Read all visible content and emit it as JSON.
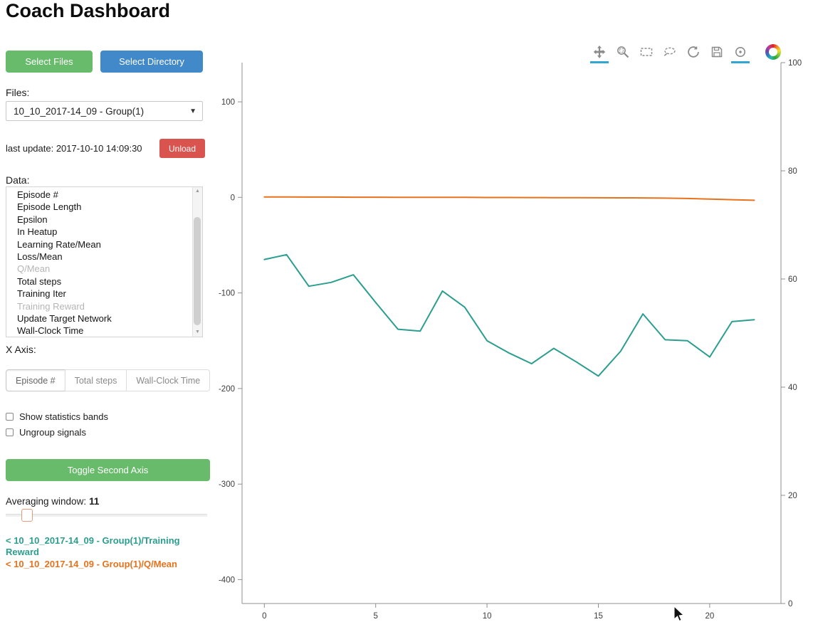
{
  "page": {
    "title": "Coach Dashboard"
  },
  "colors": {
    "green_button": "#67bb6a",
    "blue_button": "#4289ca",
    "red_button": "#d9534f",
    "active_tool_underline": "#30a6d4",
    "training_reward_line": "#2b9e8e",
    "q_mean_line": "#e8721c"
  },
  "sidebar": {
    "select_files": "Select Files",
    "select_directory": "Select Directory",
    "files_label": "Files:",
    "files_selected": "10_10_2017-14_09 - Group(1)",
    "dropdown_caret": "▼",
    "last_update": "last update: 2017-10-10 14:09:30",
    "unload": "Unload",
    "data_label": "Data:",
    "data_items": [
      {
        "label": "Episode #",
        "dimmed": false
      },
      {
        "label": "Episode Length",
        "dimmed": false
      },
      {
        "label": "Epsilon",
        "dimmed": false
      },
      {
        "label": "In Heatup",
        "dimmed": false
      },
      {
        "label": "Learning Rate/Mean",
        "dimmed": false
      },
      {
        "label": "Loss/Mean",
        "dimmed": false
      },
      {
        "label": "Q/Mean",
        "dimmed": true
      },
      {
        "label": "Total steps",
        "dimmed": false
      },
      {
        "label": "Training Iter",
        "dimmed": false
      },
      {
        "label": "Training Reward",
        "dimmed": true
      },
      {
        "label": "Update Target Network",
        "dimmed": false
      },
      {
        "label": "Wall-Clock Time",
        "dimmed": false
      }
    ],
    "scrollbar_up": "▲",
    "scrollbar_down": "▼",
    "x_axis_label": "X Axis:",
    "x_axis_options": [
      {
        "label": "Episode #",
        "active": true
      },
      {
        "label": "Total steps",
        "active": false
      },
      {
        "label": "Wall-Clock Time",
        "active": false
      }
    ],
    "checkboxes": [
      {
        "label": "Show statistics bands",
        "checked": false
      },
      {
        "label": "Ungroup signals",
        "checked": false
      }
    ],
    "toggle_second_axis": "Toggle Second Axis",
    "averaging_label": "Averaging window:",
    "averaging_value": "11",
    "legend": [
      {
        "label": "< 10_10_2017-14_09 - Group(1)/Training Reward",
        "color": "#2b9e8e"
      },
      {
        "label": "< 10_10_2017-14_09 - Group(1)/Q/Mean",
        "color": "#e8721c"
      }
    ]
  },
  "toolbar": {
    "tools": [
      {
        "name": "pan-icon",
        "active": true
      },
      {
        "name": "box-zoom-icon",
        "active": false
      },
      {
        "name": "box-select-icon",
        "active": false
      },
      {
        "name": "lasso-select-icon",
        "active": false
      },
      {
        "name": "reset-icon",
        "active": false
      },
      {
        "name": "save-icon",
        "active": false
      },
      {
        "name": "hover-icon",
        "active": true
      }
    ],
    "logo": "bokeh-logo"
  },
  "chart_data": {
    "type": "line",
    "title": "",
    "xlabel": "",
    "ylabel": "",
    "grid": false,
    "legend_position": "sidebar",
    "x_axis": {
      "ticks": [
        0,
        5,
        10,
        15,
        20
      ],
      "range": [
        -1,
        23.2
      ]
    },
    "left_axis": {
      "ticks": [
        100,
        0,
        -100,
        -200,
        -300,
        -400
      ],
      "range": [
        -425,
        141
      ]
    },
    "right_axis": {
      "ticks": [
        100,
        80,
        60,
        40,
        20,
        0
      ],
      "range": [
        0,
        100
      ]
    },
    "x": [
      0,
      1,
      2,
      3,
      4,
      5,
      6,
      7,
      8,
      9,
      10,
      11,
      12,
      13,
      14,
      15,
      16,
      17,
      18,
      19,
      20,
      21,
      22
    ],
    "series": [
      {
        "name": "10_10_2017-14_09 - Group(1)/Training Reward",
        "axis": "left",
        "color": "#2b9e8e",
        "values": [
          -65,
          -60,
          -93,
          -89,
          -81,
          -110,
          -138,
          -140,
          -98,
          -115,
          -150,
          -163,
          -174,
          -158,
          -172,
          -187,
          -161,
          -122,
          -149,
          -150,
          -167,
          -130,
          -128
        ]
      },
      {
        "name": "10_10_2017-14_09 - Group(1)/Q/Mean",
        "axis": "left",
        "color": "#e8721c",
        "values": [
          0.5,
          0.4,
          0.3,
          0.3,
          0.2,
          0.2,
          0.1,
          0.1,
          0.0,
          0.0,
          -0.1,
          -0.1,
          -0.2,
          -0.3,
          -0.3,
          -0.4,
          -0.5,
          -0.6,
          -0.8,
          -1.2,
          -1.8,
          -2.4,
          -3.0
        ]
      }
    ]
  }
}
